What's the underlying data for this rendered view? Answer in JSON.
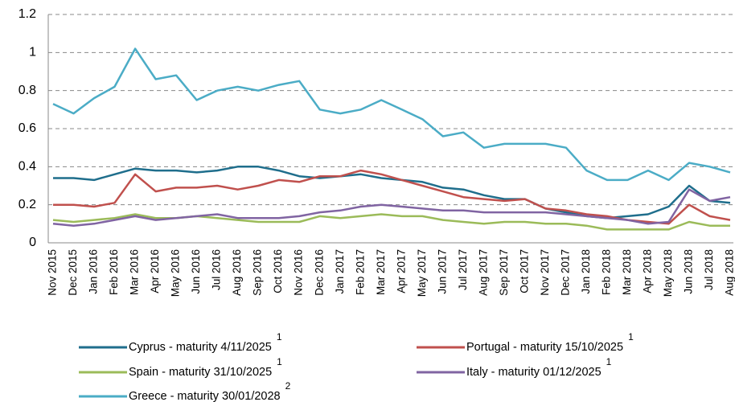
{
  "chart_data": {
    "type": "line",
    "categories": [
      "Nov 2015",
      "Dec 2015",
      "Jan 2016",
      "Feb 2016",
      "Mar 2016",
      "Apr 2016",
      "May 2016",
      "Jun 2016",
      "Jul 2016",
      "Aug 2016",
      "Sep 2016",
      "Oct 2016",
      "Nov 2016",
      "Dec 2016",
      "Jan 2017",
      "Feb 2017",
      "Mar 2017",
      "Apr 2017",
      "May 2017",
      "Jun 2017",
      "Jul 2017",
      "Aug 2017",
      "Sep 2017",
      "Oct 2017",
      "Nov 2017",
      "Dec 2017",
      "Jan 2018",
      "Feb 2018",
      "Mar 2018",
      "Apr 2018",
      "May 2018",
      "Jun 2018",
      "Jul 2018",
      "Aug 2018"
    ],
    "series": [
      {
        "name": "Cyprus - maturity 4/11/2025",
        "footnote": "1",
        "color": "#1f6e8c",
        "values": [
          0.34,
          0.34,
          0.33,
          0.36,
          0.39,
          0.38,
          0.38,
          0.37,
          0.38,
          0.4,
          0.4,
          0.38,
          0.35,
          0.34,
          0.35,
          0.36,
          0.34,
          0.33,
          0.32,
          0.29,
          0.28,
          0.25,
          0.23,
          0.23,
          0.18,
          0.16,
          0.14,
          0.13,
          0.14,
          0.15,
          0.19,
          0.3,
          0.22,
          0.21
        ]
      },
      {
        "name": "Portugal - maturity 15/10/2025",
        "footnote": "1",
        "color": "#c0504d",
        "values": [
          0.2,
          0.2,
          0.19,
          0.21,
          0.36,
          0.27,
          0.29,
          0.29,
          0.3,
          0.28,
          0.3,
          0.33,
          0.32,
          0.35,
          0.35,
          0.38,
          0.36,
          0.33,
          0.3,
          0.27,
          0.24,
          0.23,
          0.22,
          0.23,
          0.18,
          0.17,
          0.15,
          0.14,
          0.12,
          0.11,
          0.1,
          0.2,
          0.14,
          0.12
        ]
      },
      {
        "name": "Spain - maturity 31/10/2025",
        "footnote": "1",
        "color": "#9bbb59",
        "values": [
          0.12,
          0.11,
          0.12,
          0.13,
          0.15,
          0.13,
          0.13,
          0.14,
          0.13,
          0.12,
          0.11,
          0.11,
          0.11,
          0.14,
          0.13,
          0.14,
          0.15,
          0.14,
          0.14,
          0.12,
          0.11,
          0.1,
          0.11,
          0.11,
          0.1,
          0.1,
          0.09,
          0.07,
          0.07,
          0.07,
          0.07,
          0.11,
          0.09,
          0.09
        ]
      },
      {
        "name": "Italy - maturity 01/12/2025",
        "footnote": "1",
        "color": "#8064a2",
        "values": [
          0.1,
          0.09,
          0.1,
          0.12,
          0.14,
          0.12,
          0.13,
          0.14,
          0.15,
          0.13,
          0.13,
          0.13,
          0.14,
          0.16,
          0.17,
          0.19,
          0.2,
          0.19,
          0.18,
          0.17,
          0.17,
          0.16,
          0.16,
          0.16,
          0.16,
          0.15,
          0.14,
          0.13,
          0.12,
          0.1,
          0.11,
          0.28,
          0.22,
          0.24
        ]
      },
      {
        "name": "Greece - maturity 30/01/2028",
        "footnote": "2",
        "color": "#4bacc6",
        "values": [
          0.73,
          0.68,
          0.76,
          0.82,
          1.02,
          0.86,
          0.88,
          0.75,
          0.8,
          0.82,
          0.8,
          0.83,
          0.85,
          0.7,
          0.68,
          0.7,
          0.75,
          0.7,
          0.65,
          0.56,
          0.58,
          0.5,
          0.52,
          0.52,
          0.52,
          0.5,
          0.38,
          0.33,
          0.33,
          0.38,
          0.33,
          0.42,
          0.4,
          0.37
        ]
      }
    ],
    "ylim": [
      0,
      1.2
    ],
    "yticks": [
      0,
      0.2,
      0.4,
      0.6,
      0.8,
      1,
      1.2
    ],
    "grid": true
  }
}
